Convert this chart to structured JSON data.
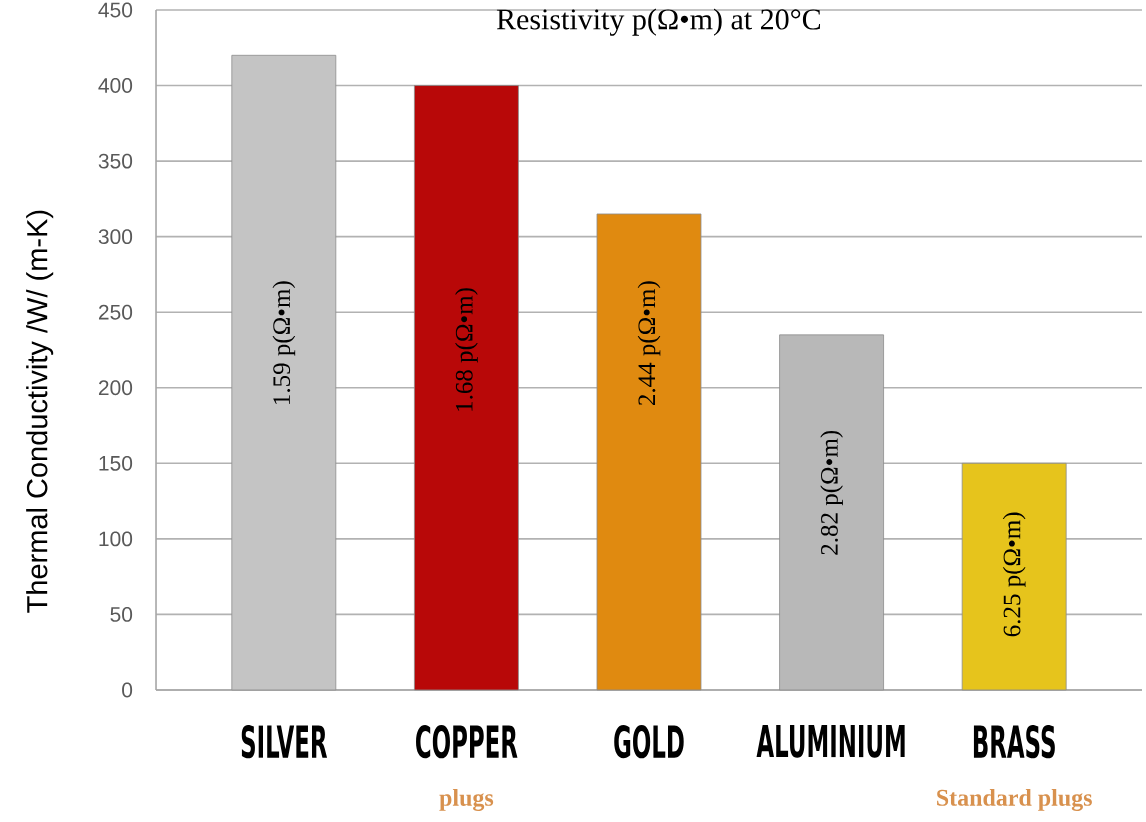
{
  "chart_data": {
    "type": "bar",
    "title": "Resistivity p(Ω•m) at 20°C",
    "ylabel": "Thermal Conductivity /W/ (m-K)",
    "categories": [
      "SILVER",
      "COPPER",
      "GOLD",
      "ALUMINIUM",
      "BRASS"
    ],
    "values": [
      420,
      400,
      315,
      235,
      150
    ],
    "colors": [
      "#c4c4c4",
      "#b80808",
      "#e08a10",
      "#b8b8b8",
      "#e6c41c"
    ],
    "ylim": [
      0,
      450
    ],
    "yticks": [
      0,
      50,
      100,
      150,
      200,
      250,
      300,
      350,
      400,
      450
    ],
    "grid": "y",
    "annotations": [
      "1.59 p(Ω•m)",
      "1.68 p(Ω•m)",
      "2.44 p(Ω•m)",
      "2.82 p(Ω•m)",
      "6.25 p(Ω•m)",
      "plugs",
      "Standard plugs"
    ]
  }
}
